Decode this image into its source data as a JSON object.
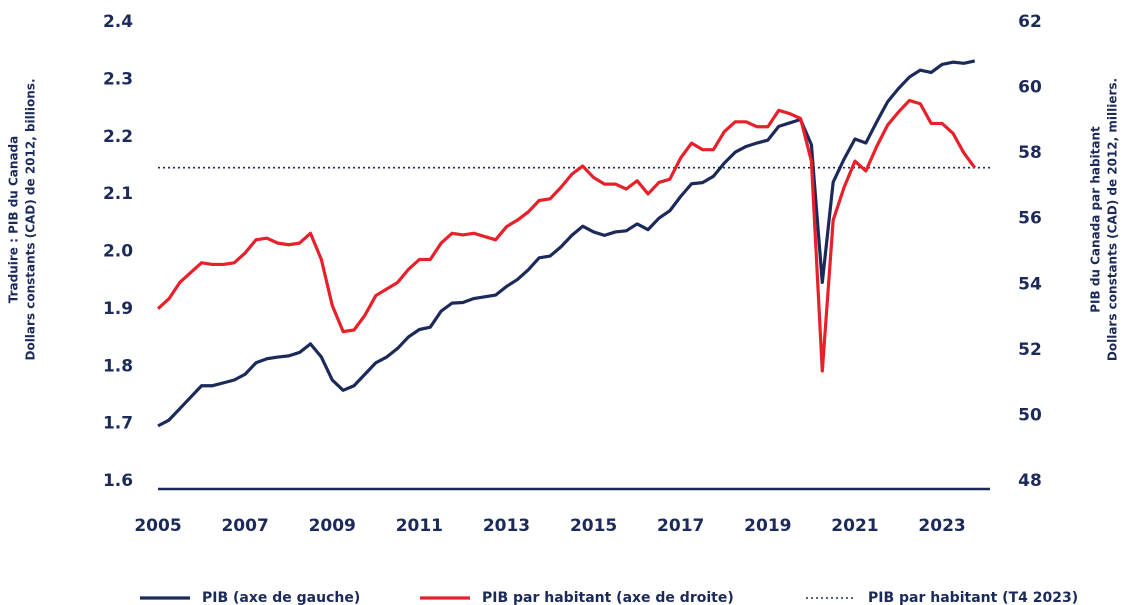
{
  "chart_data": {
    "type": "line",
    "y_label": [
      "Traduire : PIB du Canada",
      "Dollars constants (CAD) de 2012, billions."
    ],
    "y2_label": [
      "PIB du Canada par habitant",
      "Dollars constants (CAD) de 2012, milliers."
    ],
    "x": [
      2005,
      2005.25,
      2005.5,
      2005.75,
      2006,
      2006.25,
      2006.5,
      2006.75,
      2007,
      2007.25,
      2007.5,
      2007.75,
      2008,
      2008.25,
      2008.5,
      2008.75,
      2009,
      2009.25,
      2009.5,
      2009.75,
      2010,
      2010.25,
      2010.5,
      2010.75,
      2011,
      2011.25,
      2011.5,
      2011.75,
      2012,
      2012.25,
      2012.5,
      2012.75,
      2013,
      2013.25,
      2013.5,
      2013.75,
      2014,
      2014.25,
      2014.5,
      2014.75,
      2015,
      2015.25,
      2015.5,
      2015.75,
      2016,
      2016.25,
      2016.5,
      2016.75,
      2017,
      2017.25,
      2017.5,
      2017.75,
      2018,
      2018.25,
      2018.5,
      2018.75,
      2019,
      2019.25,
      2019.5,
      2019.75,
      2020,
      2020.25,
      2020.5,
      2020.75,
      2021,
      2021.25,
      2021.5,
      2021.75,
      2022,
      2022.25,
      2022.5,
      2022.75,
      2023,
      2023.25,
      2023.5,
      2023.75
    ],
    "series": [
      {
        "name": "PIB (axe de gauche)",
        "color": "#1c2a5a",
        "axis": "y",
        "values": [
          1.71,
          1.72,
          1.74,
          1.76,
          1.78,
          1.78,
          1.785,
          1.79,
          1.8,
          1.82,
          1.827,
          1.83,
          1.832,
          1.838,
          1.853,
          1.83,
          1.79,
          1.772,
          1.78,
          1.8,
          1.82,
          1.83,
          1.845,
          1.865,
          1.878,
          1.882,
          1.91,
          1.924,
          1.925,
          1.932,
          1.935,
          1.938,
          1.953,
          1.965,
          1.982,
          2.003,
          2.006,
          2.022,
          2.042,
          2.058,
          2.048,
          2.042,
          2.048,
          2.05,
          2.062,
          2.052,
          2.072,
          2.085,
          2.11,
          2.132,
          2.134,
          2.145,
          2.168,
          2.187,
          2.197,
          2.203,
          2.208,
          2.232,
          2.238,
          2.244,
          2.2,
          1.96,
          2.135,
          2.175,
          2.21,
          2.203,
          2.24,
          2.275,
          2.298,
          2.318,
          2.33,
          2.326,
          2.34,
          2.344,
          2.342,
          2.346
        ]
      },
      {
        "name": "PIB par habitant (axe de droite)",
        "color": "#e8202a",
        "axis": "y2",
        "values": [
          53.5,
          53.8,
          54.3,
          54.6,
          54.9,
          54.85,
          54.85,
          54.9,
          55.2,
          55.6,
          55.65,
          55.5,
          55.45,
          55.5,
          55.8,
          55.0,
          53.6,
          52.8,
          52.85,
          53.3,
          53.9,
          54.1,
          54.3,
          54.7,
          55.0,
          55.0,
          55.5,
          55.8,
          55.75,
          55.8,
          55.7,
          55.6,
          56.0,
          56.2,
          56.45,
          56.8,
          56.85,
          57.2,
          57.6,
          57.85,
          57.5,
          57.3,
          57.3,
          57.15,
          57.4,
          57.0,
          57.35,
          57.45,
          58.1,
          58.55,
          58.35,
          58.35,
          58.9,
          59.2,
          59.2,
          59.05,
          59.05,
          59.55,
          59.45,
          59.3,
          58.0,
          51.6,
          56.2,
          57.2,
          58.0,
          57.7,
          58.45,
          59.1,
          59.5,
          59.85,
          59.75,
          59.15,
          59.15,
          58.85,
          58.25,
          57.8
        ]
      }
    ],
    "reference_lines": [
      {
        "name": "PIB par habitant (T4 2023)",
        "value": 57.8,
        "axis": "y2",
        "color": "#1c2a5a",
        "style": "dotted"
      }
    ],
    "xlim": [
      2005,
      2024.1
    ],
    "xticks": [
      2005,
      2007,
      2009,
      2011,
      2013,
      2015,
      2017,
      2019,
      2021,
      2023
    ],
    "ylim": [
      1.6,
      2.4
    ],
    "yticks": [
      1.6,
      1.7,
      1.8,
      1.9,
      {
        "value": 2,
        "label": "2.0"
      },
      2.1,
      2.2,
      2.3,
      2.4
    ],
    "y2lim": [
      48,
      62
    ],
    "y2ticks": [
      48,
      50,
      52,
      54,
      56,
      58,
      60,
      62
    ],
    "grid": false,
    "legend": "bottom"
  }
}
